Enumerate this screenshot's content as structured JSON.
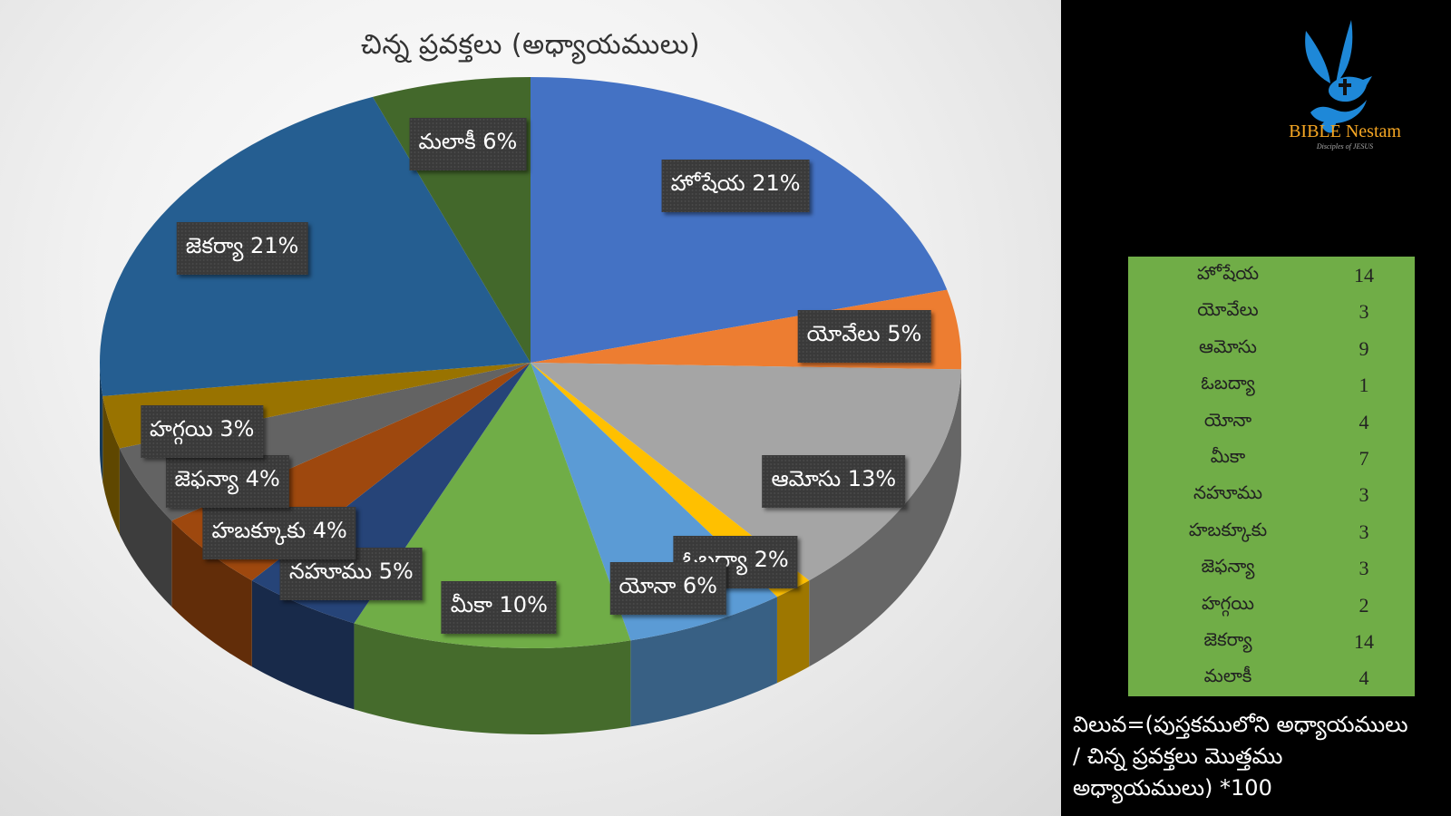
{
  "chart_data": {
    "type": "pie",
    "title": "చిన్న ప్రవక్తలు (అధ్యాయములు)",
    "style": "3d",
    "categories": [
      "హోషేయ",
      "యోవేలు",
      "ఆమోసు",
      "ఓబద్యా",
      "యోనా",
      "మీకా",
      "నహూము",
      "హబక్కూకు",
      "జెఫన్యా",
      "హగ్గయి",
      "జెకర్యా",
      "మలాకీ"
    ],
    "values": [
      14,
      3,
      9,
      1,
      4,
      7,
      3,
      3,
      3,
      2,
      14,
      4
    ],
    "percent_labels": [
      "హోషేయ 21%",
      "యోవేలు 5%",
      "ఆమోసు 13%",
      "ఓబద్యా 2%",
      "యోనా 6%",
      "మీకా 10%",
      "నహూము 5%",
      "హబక్కూకు 4%",
      "జెఫన్యా 4%",
      "హగ్గయి 3%",
      "జెకర్యా 21%",
      "మలాకీ 6%"
    ],
    "colors": [
      "#4472c4",
      "#ed7d31",
      "#a5a5a5",
      "#ffc000",
      "#5b9bd5",
      "#70ad47",
      "#264478",
      "#9e480e",
      "#636363",
      "#997300",
      "#255e91",
      "#43682b"
    ]
  },
  "table": {
    "rows": [
      {
        "name": "హోషేయ",
        "value": "14"
      },
      {
        "name": "యోవేలు",
        "value": "3"
      },
      {
        "name": "ఆమోసు",
        "value": "9"
      },
      {
        "name": "ఓబద్యా",
        "value": "1"
      },
      {
        "name": "యోనా",
        "value": "4"
      },
      {
        "name": "మీకా",
        "value": "7"
      },
      {
        "name": "నహూము",
        "value": "3"
      },
      {
        "name": "హబక్కూకు",
        "value": "3"
      },
      {
        "name": "జెఫన్యా",
        "value": "3"
      },
      {
        "name": "హగ్గయి",
        "value": "2"
      },
      {
        "name": "జెకర్యా",
        "value": "14"
      },
      {
        "name": "మలాకీ",
        "value": "4"
      }
    ]
  },
  "formula": {
    "line1": "విలువ=(పుస్తకములోని అధ్యాయములు",
    "line2": "/ చిన్న ప్రవక్తలు మొత్తము",
    "line3": "అధ్యాయములు) *100"
  },
  "logo": {
    "name": "BIBLE Nestam",
    "tagline": "Disciples of JESUS",
    "colors": {
      "dove": "#1e88d8",
      "text": "#f5a623"
    }
  }
}
